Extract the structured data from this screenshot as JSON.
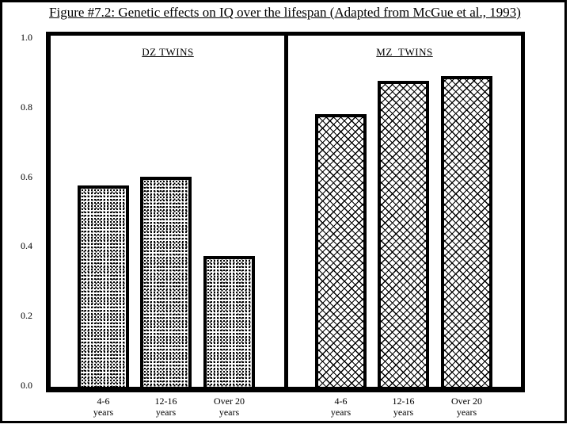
{
  "page": {
    "background": "#ffffff",
    "frame_color": "#000000"
  },
  "chart_data": {
    "type": "bar",
    "title": "Figure #7.2: Genetic effects on IQ over the lifespan (Adapted from McGue et al., 1993)",
    "xlabel": "",
    "ylabel": "",
    "ylim": [
      0.0,
      1.0
    ],
    "ytick_labels": [
      "0.0",
      "0.2",
      "0.4",
      "0.6",
      "0.8",
      "1.0"
    ],
    "grid": false,
    "legend_position": "none",
    "bar_style": "black-and-white patterned bars with thick black outlines, two panels separated by a vertical divider",
    "categories": [
      {
        "line1": "4-6",
        "line2": "years"
      },
      {
        "line1": "12-16",
        "line2": "years"
      },
      {
        "line1": "Over 20",
        "line2": "years"
      }
    ],
    "panels": [
      {
        "label": "DZ TWINS",
        "pattern": "stipple-dots",
        "values": [
          0.575,
          0.6,
          0.375
        ]
      },
      {
        "label": "MZ  TWINS",
        "pattern": "crosshatch",
        "values": [
          0.78,
          0.875,
          0.89
        ]
      }
    ]
  }
}
